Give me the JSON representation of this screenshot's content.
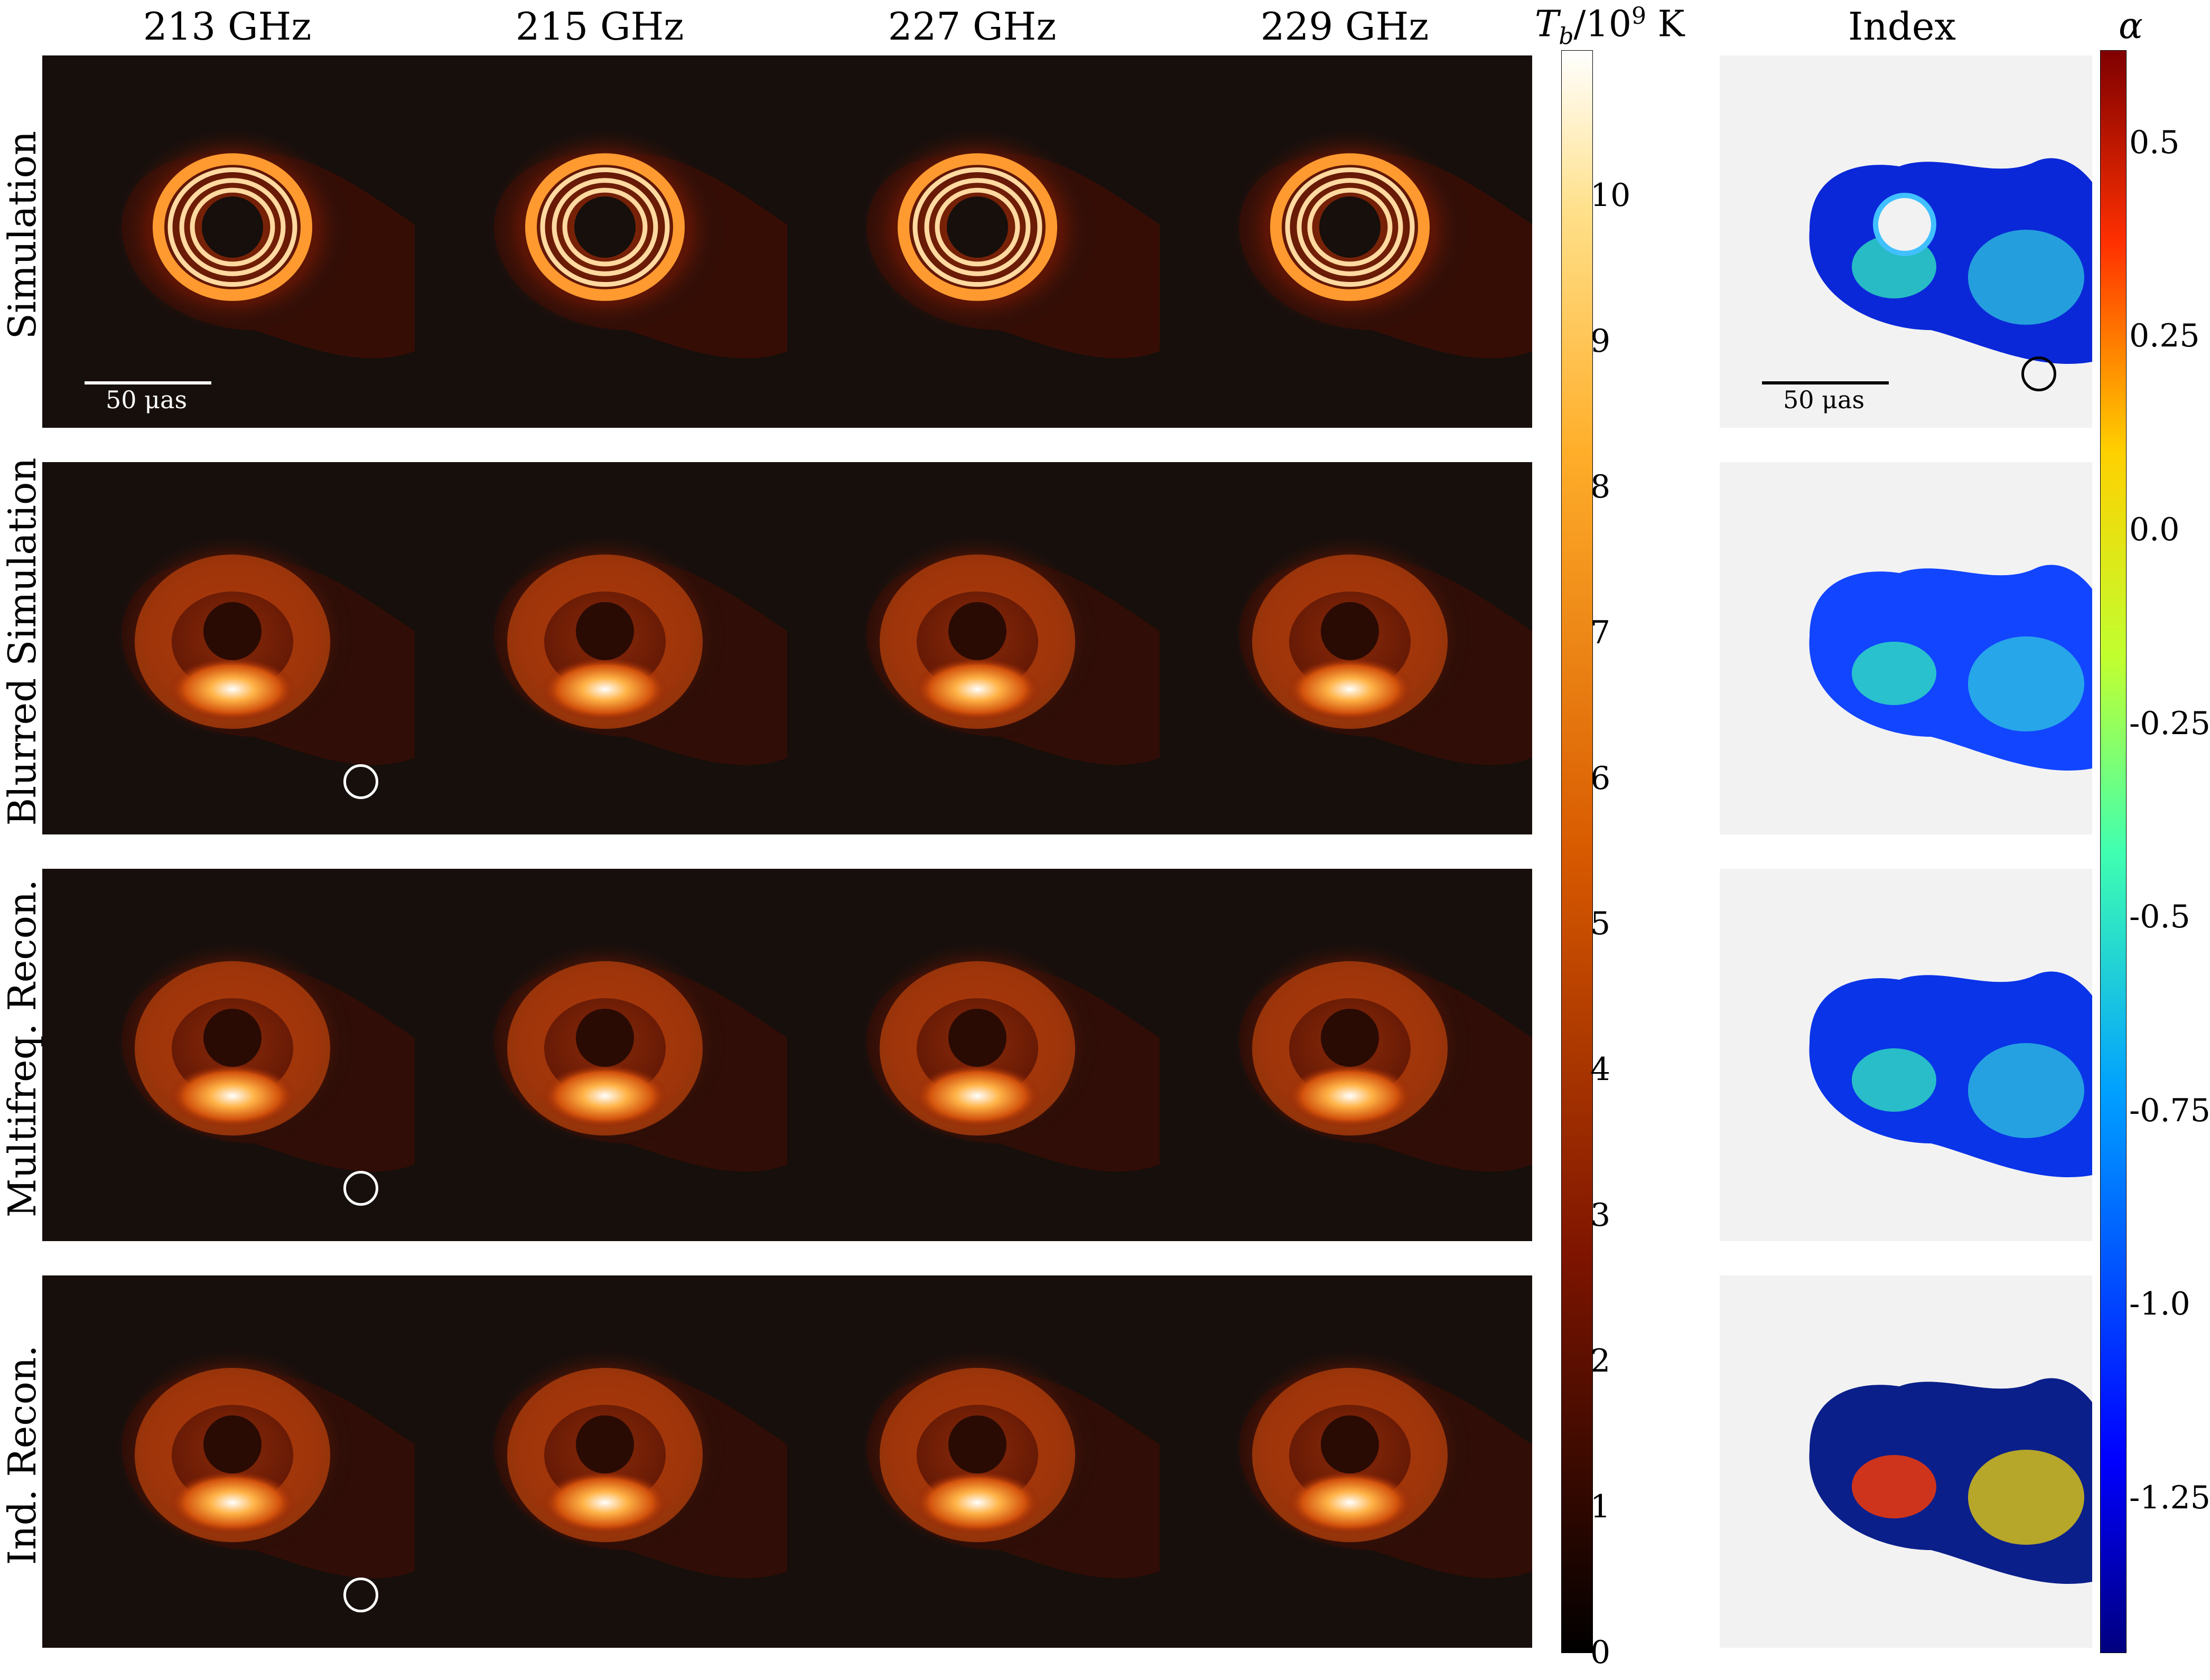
{
  "frequency_headers": [
    "213 GHz",
    "215 GHz",
    "227 GHz",
    "229 GHz"
  ],
  "index_header": "Index",
  "row_labels": [
    "Simulation",
    "Blurred Simulation",
    "Multifreq. Recon.",
    "Ind. Recon."
  ],
  "tb_colorbar": {
    "title": "T_b/10^9 K",
    "ticks": [
      "0",
      "1",
      "2",
      "3",
      "4",
      "5",
      "6",
      "7",
      "8",
      "9",
      "10"
    ],
    "colormap": "afmhot"
  },
  "alpha_colorbar": {
    "title": "α",
    "ticks": [
      "0.5",
      "0.25",
      "0.0",
      "-0.25",
      "-0.5",
      "-0.75",
      "-1.0",
      "-1.25"
    ],
    "colormap": "jet"
  },
  "scalebar_label": "50 μas",
  "colors": {
    "panel_bg": "#160f0c",
    "index_bg": "#f2f2f2",
    "beam_light": "#ffffff",
    "beam_dark": "#000000"
  }
}
